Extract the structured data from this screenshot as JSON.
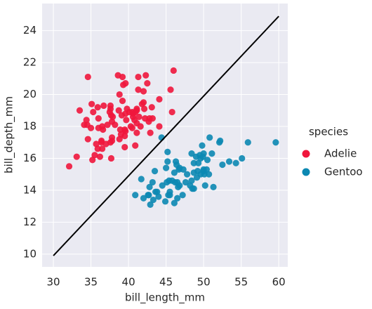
{
  "chart_data": {
    "type": "scatter",
    "xlabel": "bill_length_mm",
    "ylabel": "bill_depth_mm",
    "xlim": [
      28.5,
      61.2
    ],
    "ylim": [
      9.2,
      25.7
    ],
    "xticks": [
      30,
      35,
      40,
      45,
      50,
      55,
      60
    ],
    "yticks": [
      10,
      12,
      14,
      16,
      18,
      20,
      22,
      24
    ],
    "grid": true,
    "legend_title": "species",
    "legend_position": "right",
    "line": {
      "color": "#000000",
      "x": [
        30,
        60
      ],
      "values": [
        9.9,
        24.9
      ]
    },
    "series": [
      {
        "name": "Adelie",
        "color": "#f0163c",
        "x": [
          39.1,
          39.5,
          40.3,
          36.7,
          39.3,
          38.9,
          39.2,
          34.1,
          42.0,
          37.8,
          37.8,
          41.1,
          38.6,
          34.6,
          36.6,
          38.7,
          42.5,
          34.4,
          46.0,
          37.8,
          37.7,
          35.9,
          38.2,
          38.8,
          35.3,
          40.6,
          40.5,
          37.9,
          40.5,
          39.5,
          37.2,
          39.5,
          40.9,
          36.4,
          39.2,
          38.8,
          42.2,
          37.6,
          39.8,
          36.5,
          40.8,
          36.0,
          44.1,
          37.0,
          39.6,
          41.1,
          37.5,
          36.0,
          42.3,
          39.6,
          40.1,
          35.0,
          42.0,
          34.5,
          41.4,
          39.0,
          40.6,
          36.5,
          37.6,
          35.7,
          41.3,
          37.6,
          41.1,
          36.4,
          41.6,
          35.5,
          41.1,
          35.9,
          41.8,
          33.5,
          39.7,
          45.8,
          42.8,
          40.9,
          36.2,
          42.1,
          34.6,
          42.9,
          35.1,
          41.3,
          33.1,
          43.2,
          37.7,
          45.6,
          39.6,
          42.7,
          35.2,
          44.1,
          43.1,
          32.1
        ],
        "values": [
          18.7,
          17.4,
          18.0,
          19.3,
          20.6,
          17.8,
          19.6,
          18.1,
          20.2,
          17.1,
          17.3,
          17.6,
          21.2,
          21.1,
          17.8,
          19.0,
          20.7,
          18.4,
          21.5,
          18.3,
          18.7,
          19.2,
          18.1,
          17.2,
          18.9,
          18.6,
          17.9,
          18.6,
          18.9,
          16.7,
          18.1,
          17.8,
          18.9,
          17.0,
          21.1,
          20.0,
          18.5,
          19.3,
          19.1,
          18.0,
          18.4,
          18.5,
          19.7,
          16.9,
          18.8,
          19.0,
          18.9,
          17.9,
          21.2,
          17.7,
          18.9,
          17.9,
          19.5,
          18.1,
          18.6,
          17.5,
          18.8,
          16.6,
          19.1,
          16.9,
          21.1,
          17.0,
          18.2,
          17.1,
          18.0,
          16.2,
          19.1,
          16.6,
          19.4,
          19.0,
          18.4,
          18.9,
          18.5,
          16.8,
          16.1,
          19.1,
          17.2,
          17.6,
          19.4,
          20.3,
          16.1,
          18.5,
          16.0,
          20.3,
          20.7,
          18.3,
          15.9,
          18.0,
          19.2,
          15.5
        ]
      },
      {
        "name": "Gentoo",
        "color": "#0c88b2",
        "x": [
          46.1,
          50.0,
          48.7,
          50.0,
          47.6,
          46.5,
          45.4,
          46.7,
          43.3,
          46.8,
          40.9,
          49.0,
          45.5,
          48.4,
          45.8,
          49.3,
          42.0,
          49.2,
          46.2,
          48.7,
          50.2,
          45.1,
          46.5,
          46.3,
          42.9,
          46.1,
          44.5,
          47.8,
          48.2,
          50.0,
          47.3,
          42.8,
          59.6,
          49.1,
          48.4,
          42.6,
          44.4,
          44.0,
          48.7,
          42.7,
          49.6,
          45.3,
          49.6,
          50.5,
          43.6,
          45.5,
          44.9,
          45.2,
          46.6,
          48.5,
          50.1,
          45.0,
          43.8,
          43.2,
          50.4,
          54.3,
          49.8,
          49.5,
          50.7,
          46.4,
          51.1,
          45.2,
          52.5,
          50.8,
          51.3,
          52.1,
          52.2,
          55.9,
          53.4,
          55.1,
          41.7,
          43.5,
          47.2,
          46.8,
          49.9
        ],
        "values": [
          13.2,
          16.3,
          14.1,
          15.2,
          14.5,
          13.5,
          14.6,
          15.3,
          13.4,
          15.4,
          13.7,
          16.1,
          13.7,
          14.6,
          14.6,
          15.7,
          13.5,
          15.2,
          14.5,
          15.1,
          14.3,
          14.5,
          14.5,
          15.8,
          13.1,
          15.1,
          14.3,
          15.0,
          14.3,
          15.3,
          15.3,
          14.2,
          17.0,
          14.8,
          16.3,
          13.7,
          17.3,
          13.6,
          15.7,
          13.7,
          16.0,
          13.7,
          15.0,
          15.9,
          13.9,
          13.9,
          13.3,
          15.8,
          14.2,
          14.1,
          15.0,
          15.4,
          13.9,
          14.5,
          15.3,
          15.7,
          16.8,
          16.2,
          15.0,
          15.6,
          16.3,
          16.4,
          15.6,
          17.3,
          14.2,
          17.0,
          17.1,
          17.0,
          15.8,
          16.0,
          14.7,
          15.2,
          13.7,
          14.3,
          16.1
        ]
      }
    ]
  }
}
